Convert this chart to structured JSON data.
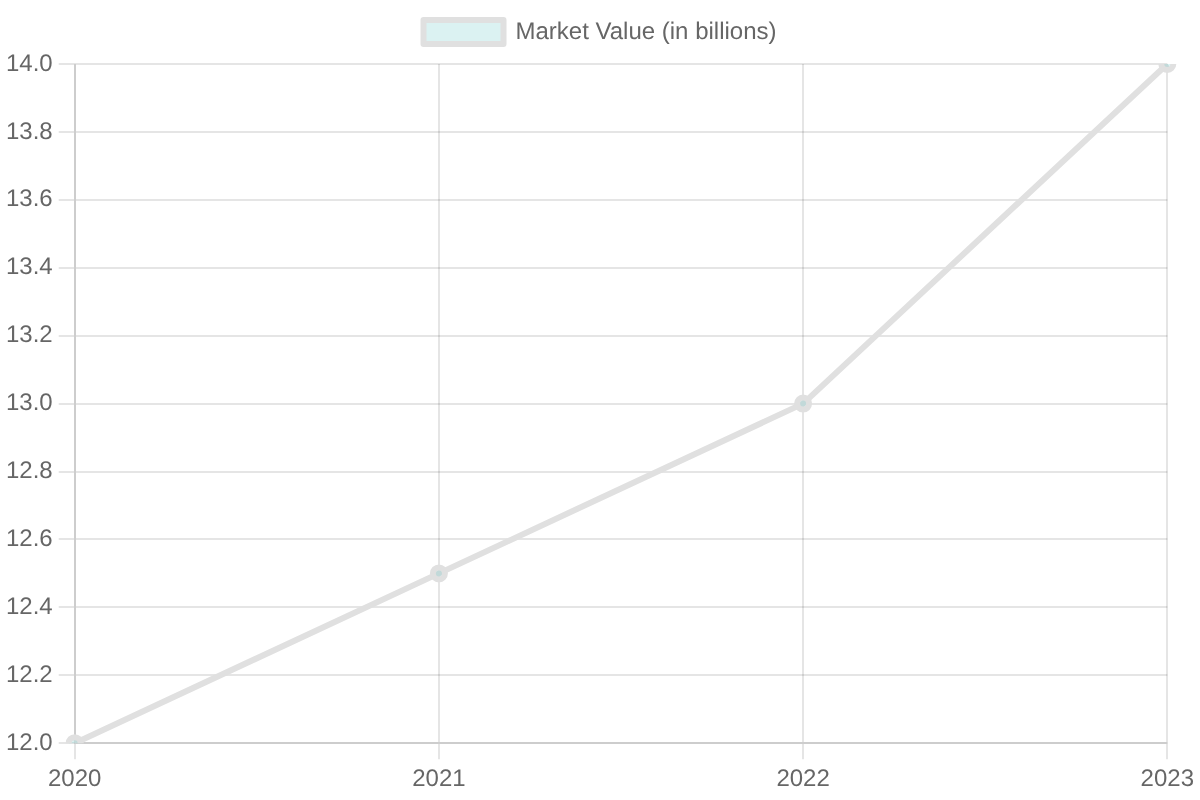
{
  "chart_data": {
    "type": "line",
    "categories": [
      "2020",
      "2021",
      "2022",
      "2023"
    ],
    "series": [
      {
        "name": "Market Value (in billions)",
        "color": "#e0e0e0",
        "values": [
          12.0,
          12.5,
          13.0,
          14.0
        ]
      }
    ],
    "ylim": [
      12,
      14
    ],
    "yticks": [
      {
        "value": 12,
        "label": "12.0"
      },
      {
        "value": 12.2,
        "label": "12.2"
      },
      {
        "value": 12.4,
        "label": "12.4"
      },
      {
        "value": 12.6,
        "label": "12.6"
      },
      {
        "value": 12.8,
        "label": "12.8"
      },
      {
        "value": 13,
        "label": "13.0"
      },
      {
        "value": 13.2,
        "label": "13.2"
      },
      {
        "value": 13.4,
        "label": "13.4"
      },
      {
        "value": 13.6,
        "label": "13.6"
      },
      {
        "value": 13.8,
        "label": "13.8"
      },
      {
        "value": 14,
        "label": "14.0"
      }
    ],
    "grid": true,
    "legend": "top",
    "marker": "circle",
    "line_style": "solid"
  }
}
